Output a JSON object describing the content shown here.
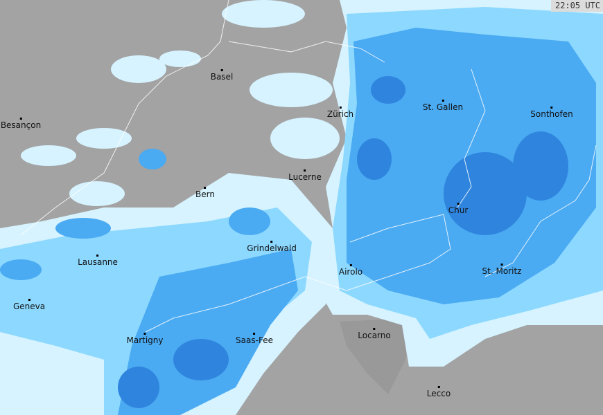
{
  "timestamp": "22:05 UTC",
  "colors": {
    "background": "#a3a3a3",
    "light_precip": "#d6f3ff",
    "moderate_precip": "#8cd8ff",
    "heavy_precip": "#4aaaf2",
    "very_heavy_precip": "#2f85de",
    "borders": "#ffffff"
  },
  "cities": [
    {
      "name": "Basel"
    },
    {
      "name": "Besançon"
    },
    {
      "name": "Zürich"
    },
    {
      "name": "St. Gallen"
    },
    {
      "name": "Sonthofen"
    },
    {
      "name": "Lucerne"
    },
    {
      "name": "Bern"
    },
    {
      "name": "Chur"
    },
    {
      "name": "Grindelwald"
    },
    {
      "name": "Lausanne"
    },
    {
      "name": "Airolo"
    },
    {
      "name": "St. Moritz"
    },
    {
      "name": "Geneva"
    },
    {
      "name": "Martigny"
    },
    {
      "name": "Saas-Fee"
    },
    {
      "name": "Locarno"
    },
    {
      "name": "Lecco"
    }
  ]
}
